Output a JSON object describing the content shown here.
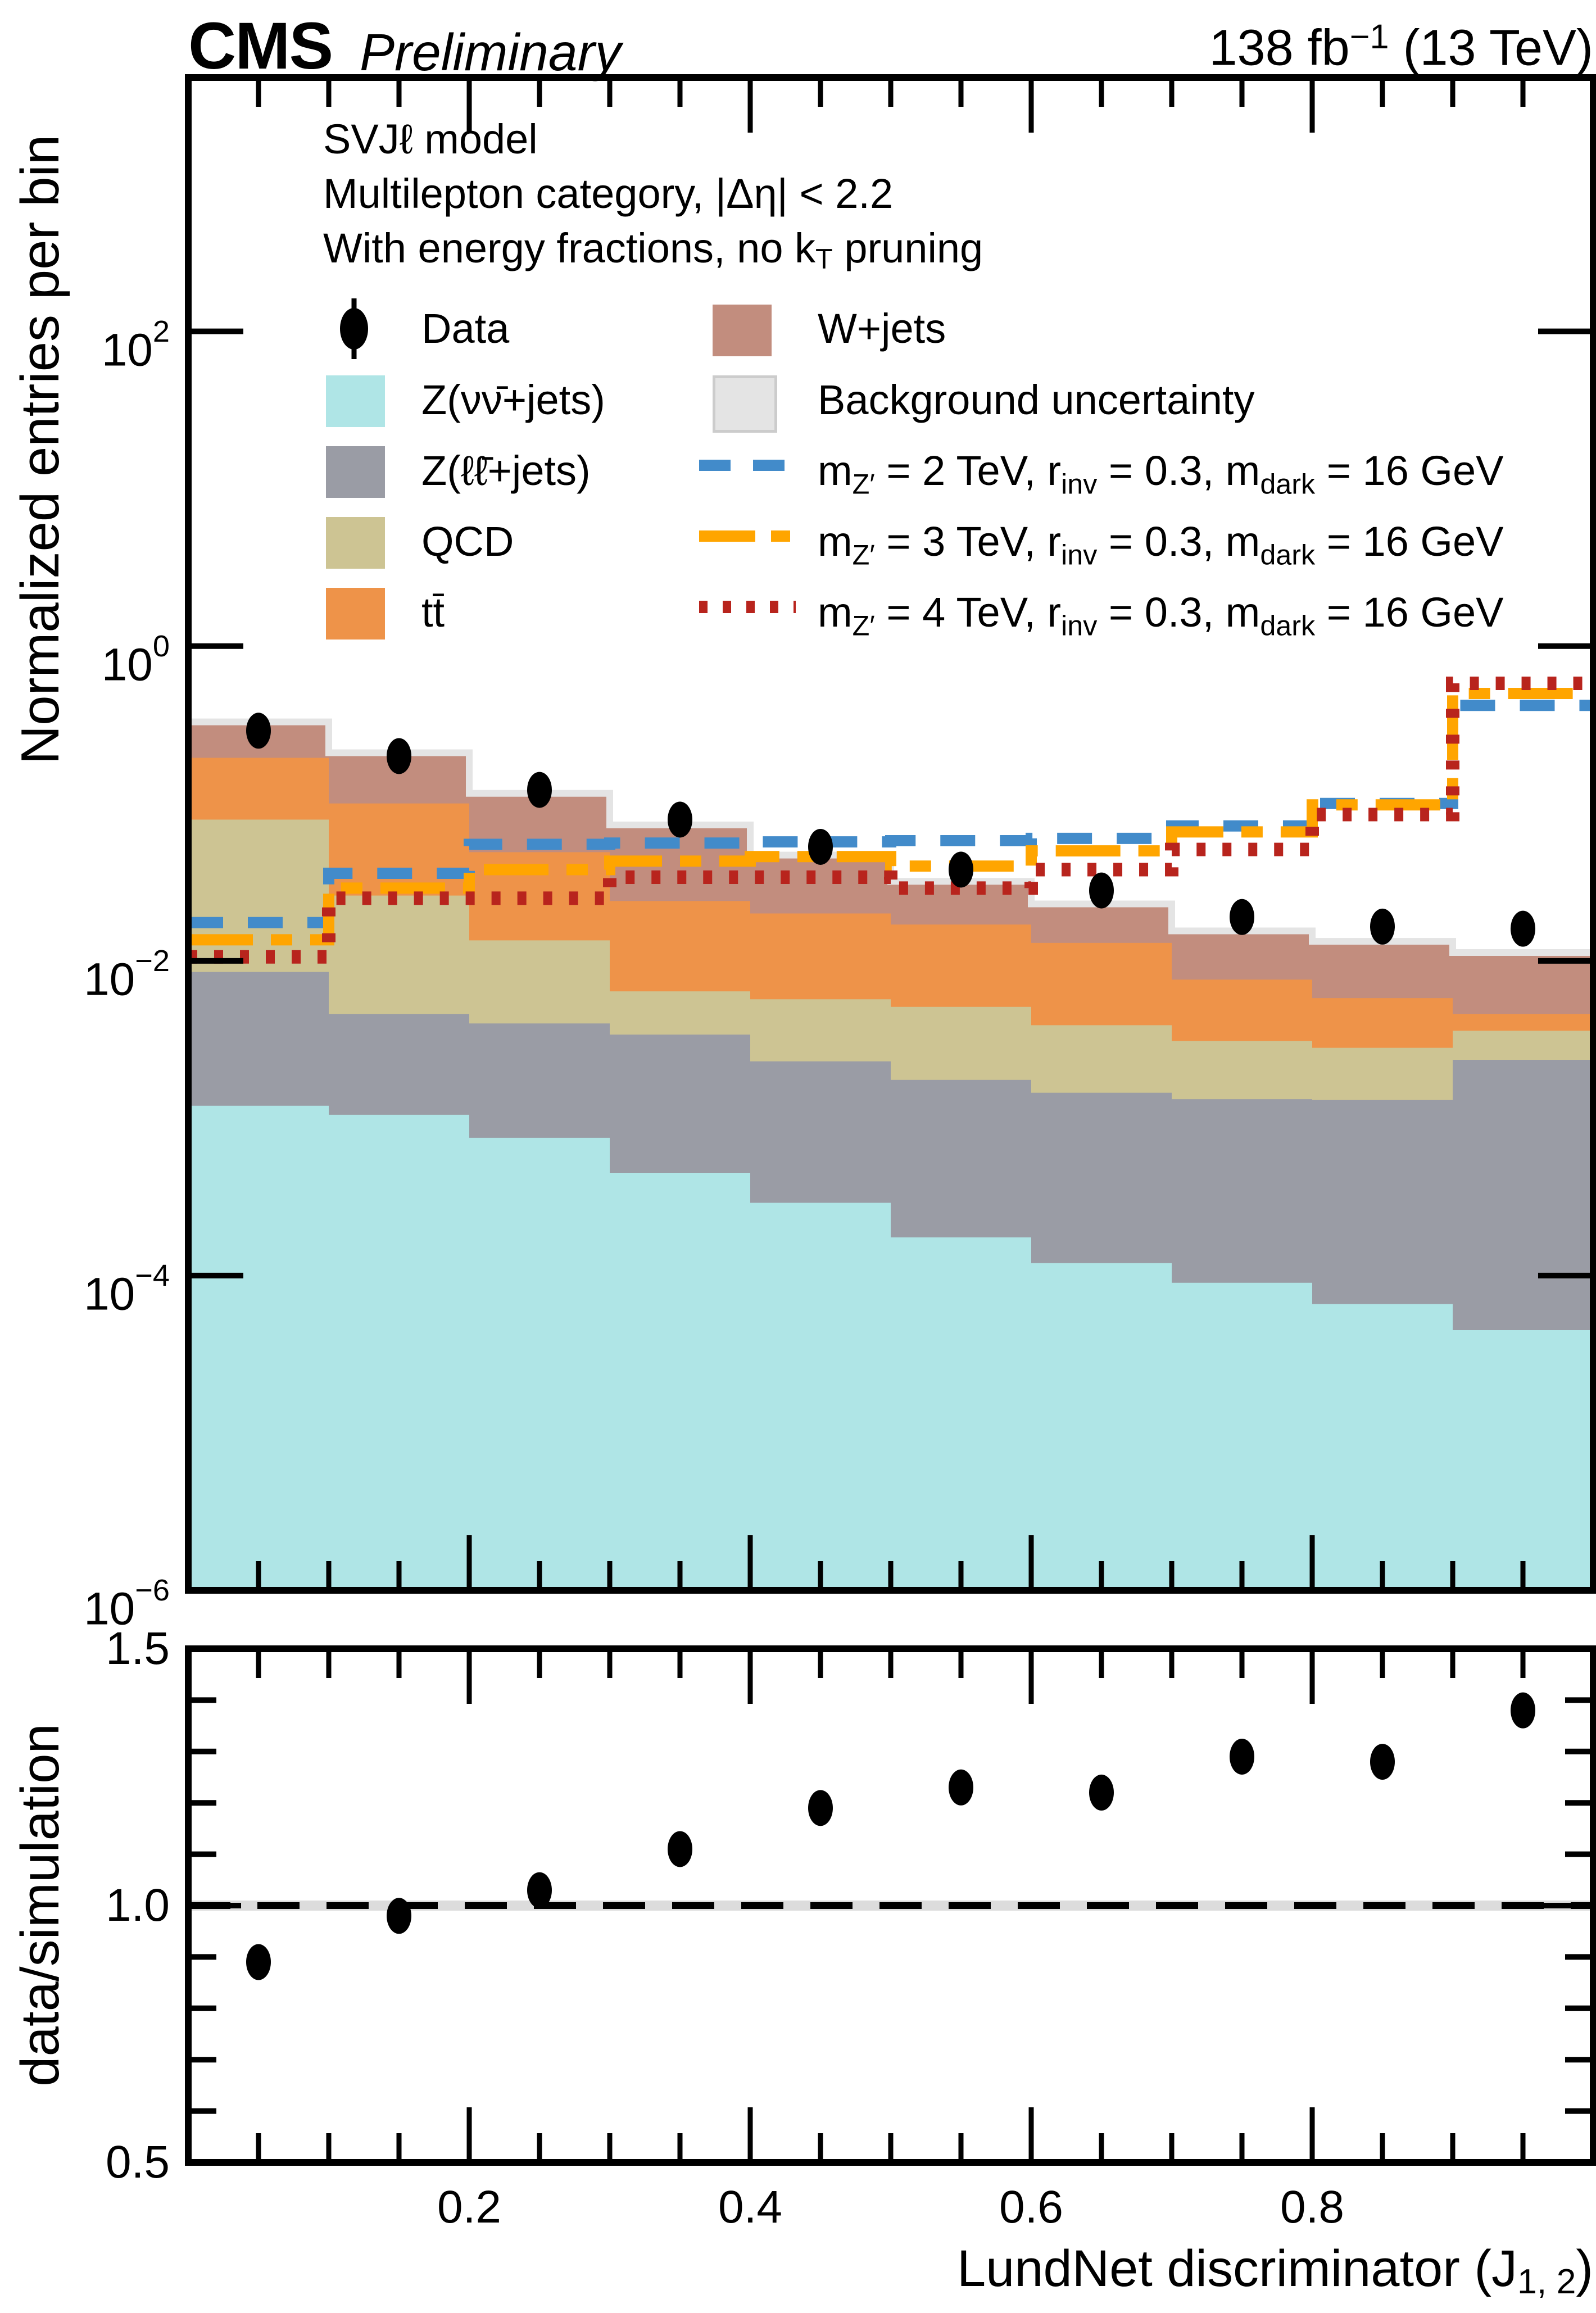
{
  "header": {
    "experiment": "CMS",
    "label": "Preliminary",
    "lumi_parts": [
      {
        "t": "138 fb"
      },
      {
        "t": "−1",
        "s": "sup"
      },
      {
        "t": " (13 TeV)"
      }
    ]
  },
  "annotations": [
    {
      "parts": [
        {
          "t": "SVJℓ model"
        }
      ]
    },
    {
      "parts": [
        {
          "t": "Multilepton category,  |Δη| < 2.2"
        }
      ]
    },
    {
      "parts": [
        {
          "t": "With energy fractions, no k"
        },
        {
          "t": "T",
          "s": "sub"
        },
        {
          "t": " pruning"
        }
      ]
    }
  ],
  "legend": {
    "col1": [
      {
        "marker": "data:data",
        "label_parts": [
          {
            "t": "Data"
          }
        ]
      },
      {
        "marker": "swatch:znunu",
        "label_parts": [
          {
            "t": "Z(νν̄+jets)"
          }
        ]
      },
      {
        "marker": "swatch:zll",
        "label_parts": [
          {
            "t": "Z(ℓℓ̄+jets)"
          }
        ]
      },
      {
        "marker": "swatch:qcd",
        "label_parts": [
          {
            "t": "QCD"
          }
        ]
      },
      {
        "marker": "swatch:ttbar",
        "label_parts": [
          {
            "t": "tt̄"
          }
        ]
      }
    ],
    "col2": [
      {
        "marker": "swatch:wjets",
        "label_parts": [
          {
            "t": "W+jets"
          }
        ]
      },
      {
        "marker": "swatch:unc",
        "label_parts": [
          {
            "t": "Background uncertainty"
          }
        ]
      },
      {
        "marker": "sigline:sig2",
        "label_parts": [
          {
            "t": "m"
          },
          {
            "t": "Z′",
            "s": "sub"
          },
          {
            "t": " = 2 TeV, r"
          },
          {
            "t": "inv",
            "s": "sub"
          },
          {
            "t": " = 0.3, m"
          },
          {
            "t": "dark",
            "s": "sub"
          },
          {
            "t": " = 16 GeV"
          }
        ]
      },
      {
        "marker": "sigline:sig3",
        "label_parts": [
          {
            "t": "m"
          },
          {
            "t": "Z′",
            "s": "sub"
          },
          {
            "t": " = 3 TeV, r"
          },
          {
            "t": "inv",
            "s": "sub"
          },
          {
            "t": " = 0.3, m"
          },
          {
            "t": "dark",
            "s": "sub"
          },
          {
            "t": " = 16 GeV"
          }
        ]
      },
      {
        "marker": "sigline:sig4",
        "label_parts": [
          {
            "t": "m"
          },
          {
            "t": "Z′",
            "s": "sub"
          },
          {
            "t": " = 4 TeV, r"
          },
          {
            "t": "inv",
            "s": "sub"
          },
          {
            "t": " = 0.3, m"
          },
          {
            "t": "dark",
            "s": "sub"
          },
          {
            "t": " = 16 GeV"
          }
        ]
      }
    ]
  },
  "axes": {
    "main_y_title": "Normalized entries per bin",
    "ratio_y_title": "data/simulation",
    "x_title_parts": [
      {
        "t": "LundNet discriminator (J"
      },
      {
        "t": "1, 2",
        "s": "sub"
      },
      {
        "t": ")"
      }
    ],
    "main_y_tick_labels": [
      {
        "base": "10",
        "exp": "2",
        "value": 100
      },
      {
        "base": "10",
        "exp": "0",
        "value": 1
      },
      {
        "base": "10",
        "exp": "−2",
        "value": 0.01
      },
      {
        "base": "10",
        "exp": "−4",
        "value": 0.0001
      },
      {
        "base": "10",
        "exp": "−6",
        "value": 1e-06
      }
    ],
    "ratio_y_tick_labels": [
      {
        "text": "1.5",
        "value": 1.5
      },
      {
        "text": "1.0",
        "value": 1.0
      },
      {
        "text": "0.5",
        "value": 0.5
      }
    ],
    "x_tick_labels": [
      {
        "text": "0.2",
        "value": 0.2
      },
      {
        "text": "0.4",
        "value": 0.4
      },
      {
        "text": "0.6",
        "value": 0.6
      },
      {
        "text": "0.8",
        "value": 0.8
      }
    ]
  },
  "chart_data": {
    "type": "bar",
    "subtype": "stacked-step-histogram-log-with-ratio",
    "title": "CMS Preliminary, 138 fb−1 (13 TeV), SVJℓ model, Multilepton category |Δη| < 2.2, with energy fractions, no kT pruning",
    "x": {
      "min": 0.0,
      "max": 1.0,
      "bin_edges": [
        0.0,
        0.1,
        0.2,
        0.3,
        0.4,
        0.5,
        0.6,
        0.7,
        0.8,
        0.9,
        1.0
      ],
      "bin_centers": [
        0.05,
        0.15,
        0.25,
        0.35,
        0.45,
        0.55,
        0.65,
        0.75,
        0.85,
        0.95
      ],
      "major_ticks": [
        0.2,
        0.4,
        0.6,
        0.8
      ],
      "minor_tick_step": 0.05,
      "title": "LundNet discriminator (J1,2)"
    },
    "main_panel": {
      "yscale": "log",
      "ylabel": "Normalized entries per bin",
      "ylim": [
        1e-06,
        4100
      ],
      "ytick_values": [
        100,
        1,
        0.01,
        0.0001,
        1e-06
      ],
      "stack_series": [
        {
          "id": "znunu",
          "name": "Z(νν̄+jets)",
          "color": "#afe5e6",
          "cumulative_top": [
            0.0012,
            0.00105,
            0.00075,
            0.00045,
            0.00029,
            0.000175,
            0.00012,
            9e-05,
            6.6e-05,
            4.5e-05
          ]
        },
        {
          "id": "zll",
          "name": "Z(ℓℓ̄+jets)",
          "color": "#9a9ca5",
          "cumulative_top": [
            0.0085,
            0.0046,
            0.004,
            0.0034,
            0.0023,
            0.00175,
            0.00145,
            0.00132,
            0.00131,
            0.00235
          ]
        },
        {
          "id": "qcd",
          "name": "QCD",
          "color": "#cdc493",
          "cumulative_top": [
            0.079,
            0.026,
            0.0135,
            0.0064,
            0.0057,
            0.0051,
            0.0039,
            0.0031,
            0.0028,
            0.0036
          ]
        },
        {
          "id": "ttbar",
          "name": "tt̄",
          "color": "#ee9349",
          "cumulative_top": [
            0.195,
            0.1,
            0.049,
            0.024,
            0.02,
            0.017,
            0.013,
            0.0076,
            0.0058,
            0.0046
          ]
        },
        {
          "id": "wjets",
          "name": "W+jets",
          "color": "#c28d7e",
          "cumulative_top": [
            0.33,
            0.21,
            0.116,
            0.073,
            0.047,
            0.032,
            0.023,
            0.0155,
            0.0133,
            0.0113
          ]
        }
      ],
      "uncertainty": {
        "name": "Background uncertainty",
        "color": "#e4e4e4",
        "edge_color": "#cccccc"
      },
      "signals": [
        {
          "id": "sig2",
          "name": "mZ′ = 2 TeV, rinv = 0.3, mdark = 16 GeV",
          "color": "#428bca",
          "dash": "dashed",
          "values": [
            0.0175,
            0.036,
            0.055,
            0.056,
            0.057,
            0.058,
            0.06,
            0.072,
            0.1,
            0.42
          ]
        },
        {
          "id": "sig3",
          "name": "mZ′ = 3 TeV, rinv = 0.3, mdark = 16 GeV",
          "color": "#ffa500",
          "dash": "dashdot",
          "values": [
            0.0136,
            0.029,
            0.038,
            0.043,
            0.046,
            0.04,
            0.05,
            0.066,
            0.098,
            0.5
          ]
        },
        {
          "id": "sig4",
          "name": "mZ′ = 4 TeV, rinv = 0.3, mdark = 16 GeV",
          "color": "#b8241d",
          "dash": "dotted",
          "values": [
            0.0106,
            0.025,
            0.025,
            0.034,
            0.034,
            0.029,
            0.038,
            0.051,
            0.085,
            0.58
          ]
        }
      ],
      "data_points": {
        "name": "Data",
        "color": "#000000",
        "values": [
          0.29,
          0.2,
          0.122,
          0.079,
          0.053,
          0.038,
          0.028,
          0.019,
          0.0165,
          0.016
        ]
      }
    },
    "ratio_panel": {
      "ylabel": "data/simulation",
      "ylim": [
        0.5,
        1.5
      ],
      "major_ticks": [
        0.5,
        1.0,
        1.5
      ],
      "minor_tick_step": 0.1,
      "reference_line": 1.0,
      "band_color": "#dcdcdc",
      "values": [
        0.89,
        0.98,
        1.03,
        1.11,
        1.19,
        1.23,
        1.22,
        1.29,
        1.28,
        1.38
      ]
    }
  }
}
